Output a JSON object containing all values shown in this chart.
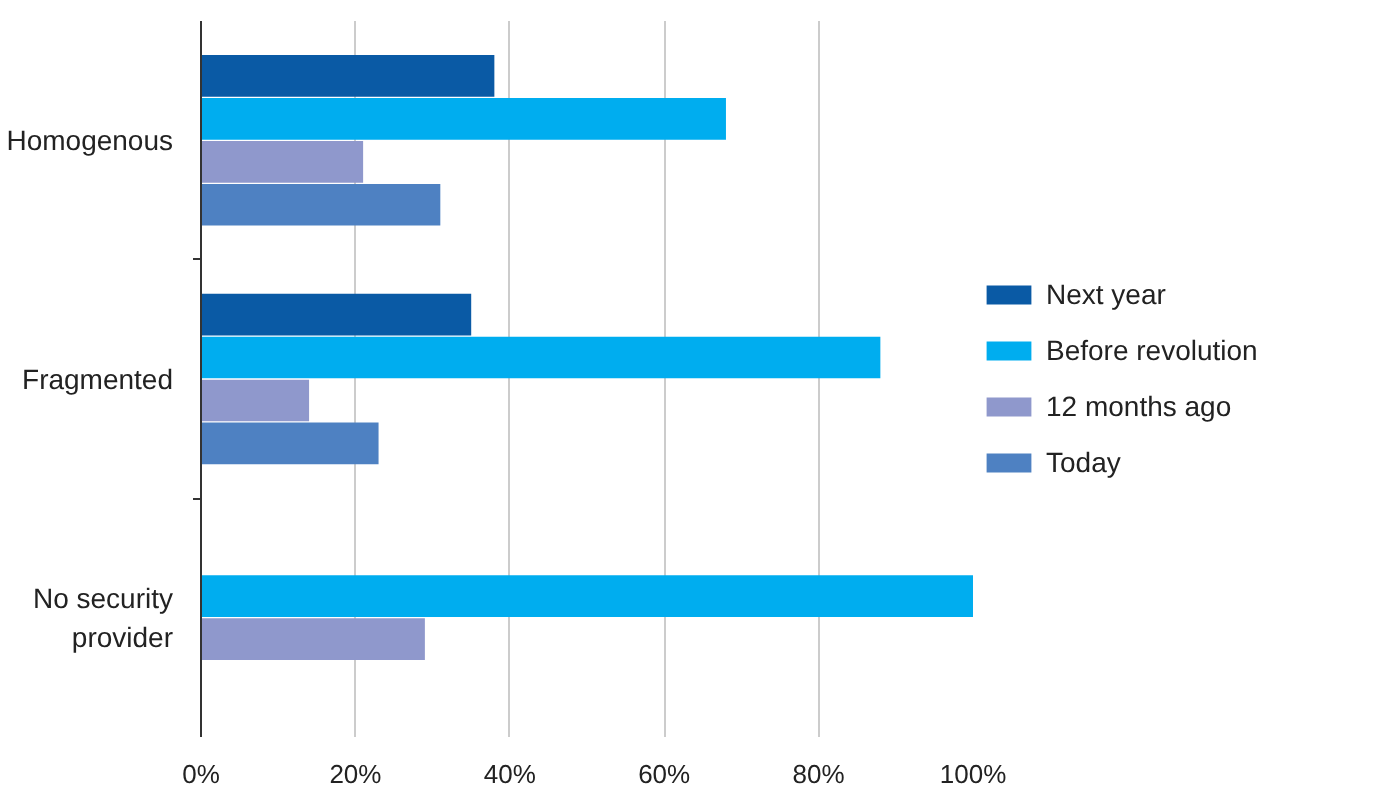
{
  "chart_data": {
    "type": "bar",
    "orientation": "horizontal",
    "categories": [
      "Homogenous",
      "Fragmented",
      "No security provider"
    ],
    "series": [
      {
        "name": "Next year",
        "color": "#0a5aa5",
        "values": [
          38,
          35,
          null
        ]
      },
      {
        "name": "Before revolution",
        "color": "#00adef",
        "values": [
          68,
          88,
          100
        ]
      },
      {
        "name": "12 months ago",
        "color": "#8f98cc",
        "values": [
          21,
          14,
          29
        ]
      },
      {
        "name": "Today",
        "color": "#4e81c2",
        "values": [
          31,
          23,
          null
        ]
      }
    ],
    "xlim": [
      0,
      100
    ],
    "xticks": [
      {
        "value": 0,
        "label": "0%"
      },
      {
        "value": 20,
        "label": "20%"
      },
      {
        "value": 40,
        "label": "40%"
      },
      {
        "value": 60,
        "label": "60%"
      },
      {
        "value": 80,
        "label": "80%"
      },
      {
        "value": 100,
        "label": "100%"
      }
    ],
    "grid": "x",
    "legend": "right"
  }
}
